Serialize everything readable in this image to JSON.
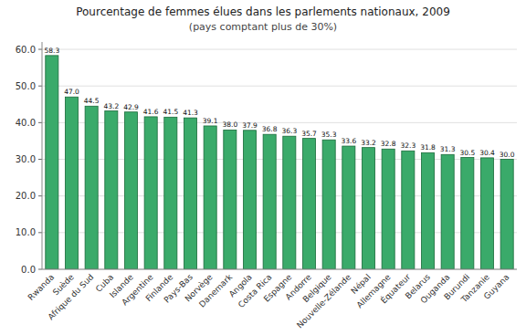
{
  "chart_data": {
    "type": "bar",
    "title": "Pourcentage de femmes élues dans les parlements nationaux, 2009",
    "subtitle": "(pays comptant plus de 30%)",
    "categories": [
      "Rwanda",
      "Suède",
      "Afrique du Sud",
      "Cuba",
      "Islande",
      "Argentine",
      "Finlande",
      "Pays-Bas",
      "Norvège",
      "Danemark",
      "Angola",
      "Costa Rica",
      "Espagne",
      "Andorre",
      "Belgique",
      "Nouvelle-Zélande",
      "Népal",
      "Allemagne",
      "Équateur",
      "Belarus",
      "Ouganda",
      "Burundi",
      "Tanzanie",
      "Guyana"
    ],
    "values": [
      58.3,
      47.0,
      44.5,
      43.2,
      42.9,
      41.6,
      41.5,
      41.3,
      39.1,
      38.0,
      37.9,
      36.8,
      36.3,
      35.7,
      35.3,
      33.6,
      33.2,
      32.8,
      32.3,
      31.8,
      31.3,
      30.5,
      30.4,
      30.0
    ],
    "value_labels": [
      "58.3",
      "47.0",
      "44.5",
      "43.2",
      "42.9",
      "41.6",
      "41.5",
      "41.3",
      "39.1",
      "38.0",
      "37.9",
      "36.8",
      "36.3",
      "35.7",
      "35.3",
      "33.6",
      "33.2",
      "32.8",
      "32.3",
      "31.8",
      "31.3",
      "30.5",
      "30.4",
      "30.0"
    ],
    "data_labels": true,
    "color": "#3aaa6a",
    "ylim": [
      0,
      62
    ],
    "yticks": [
      {
        "value": 0.0,
        "label": "0.0"
      },
      {
        "value": 10.0,
        "label": "10.0"
      },
      {
        "value": 20.0,
        "label": "20.0"
      },
      {
        "value": 30.0,
        "label": "30.0"
      },
      {
        "value": 40.0,
        "label": "40.0"
      },
      {
        "value": 50.0,
        "label": "50.0"
      },
      {
        "value": 60.0,
        "label": "60.0"
      }
    ],
    "grid": true
  }
}
